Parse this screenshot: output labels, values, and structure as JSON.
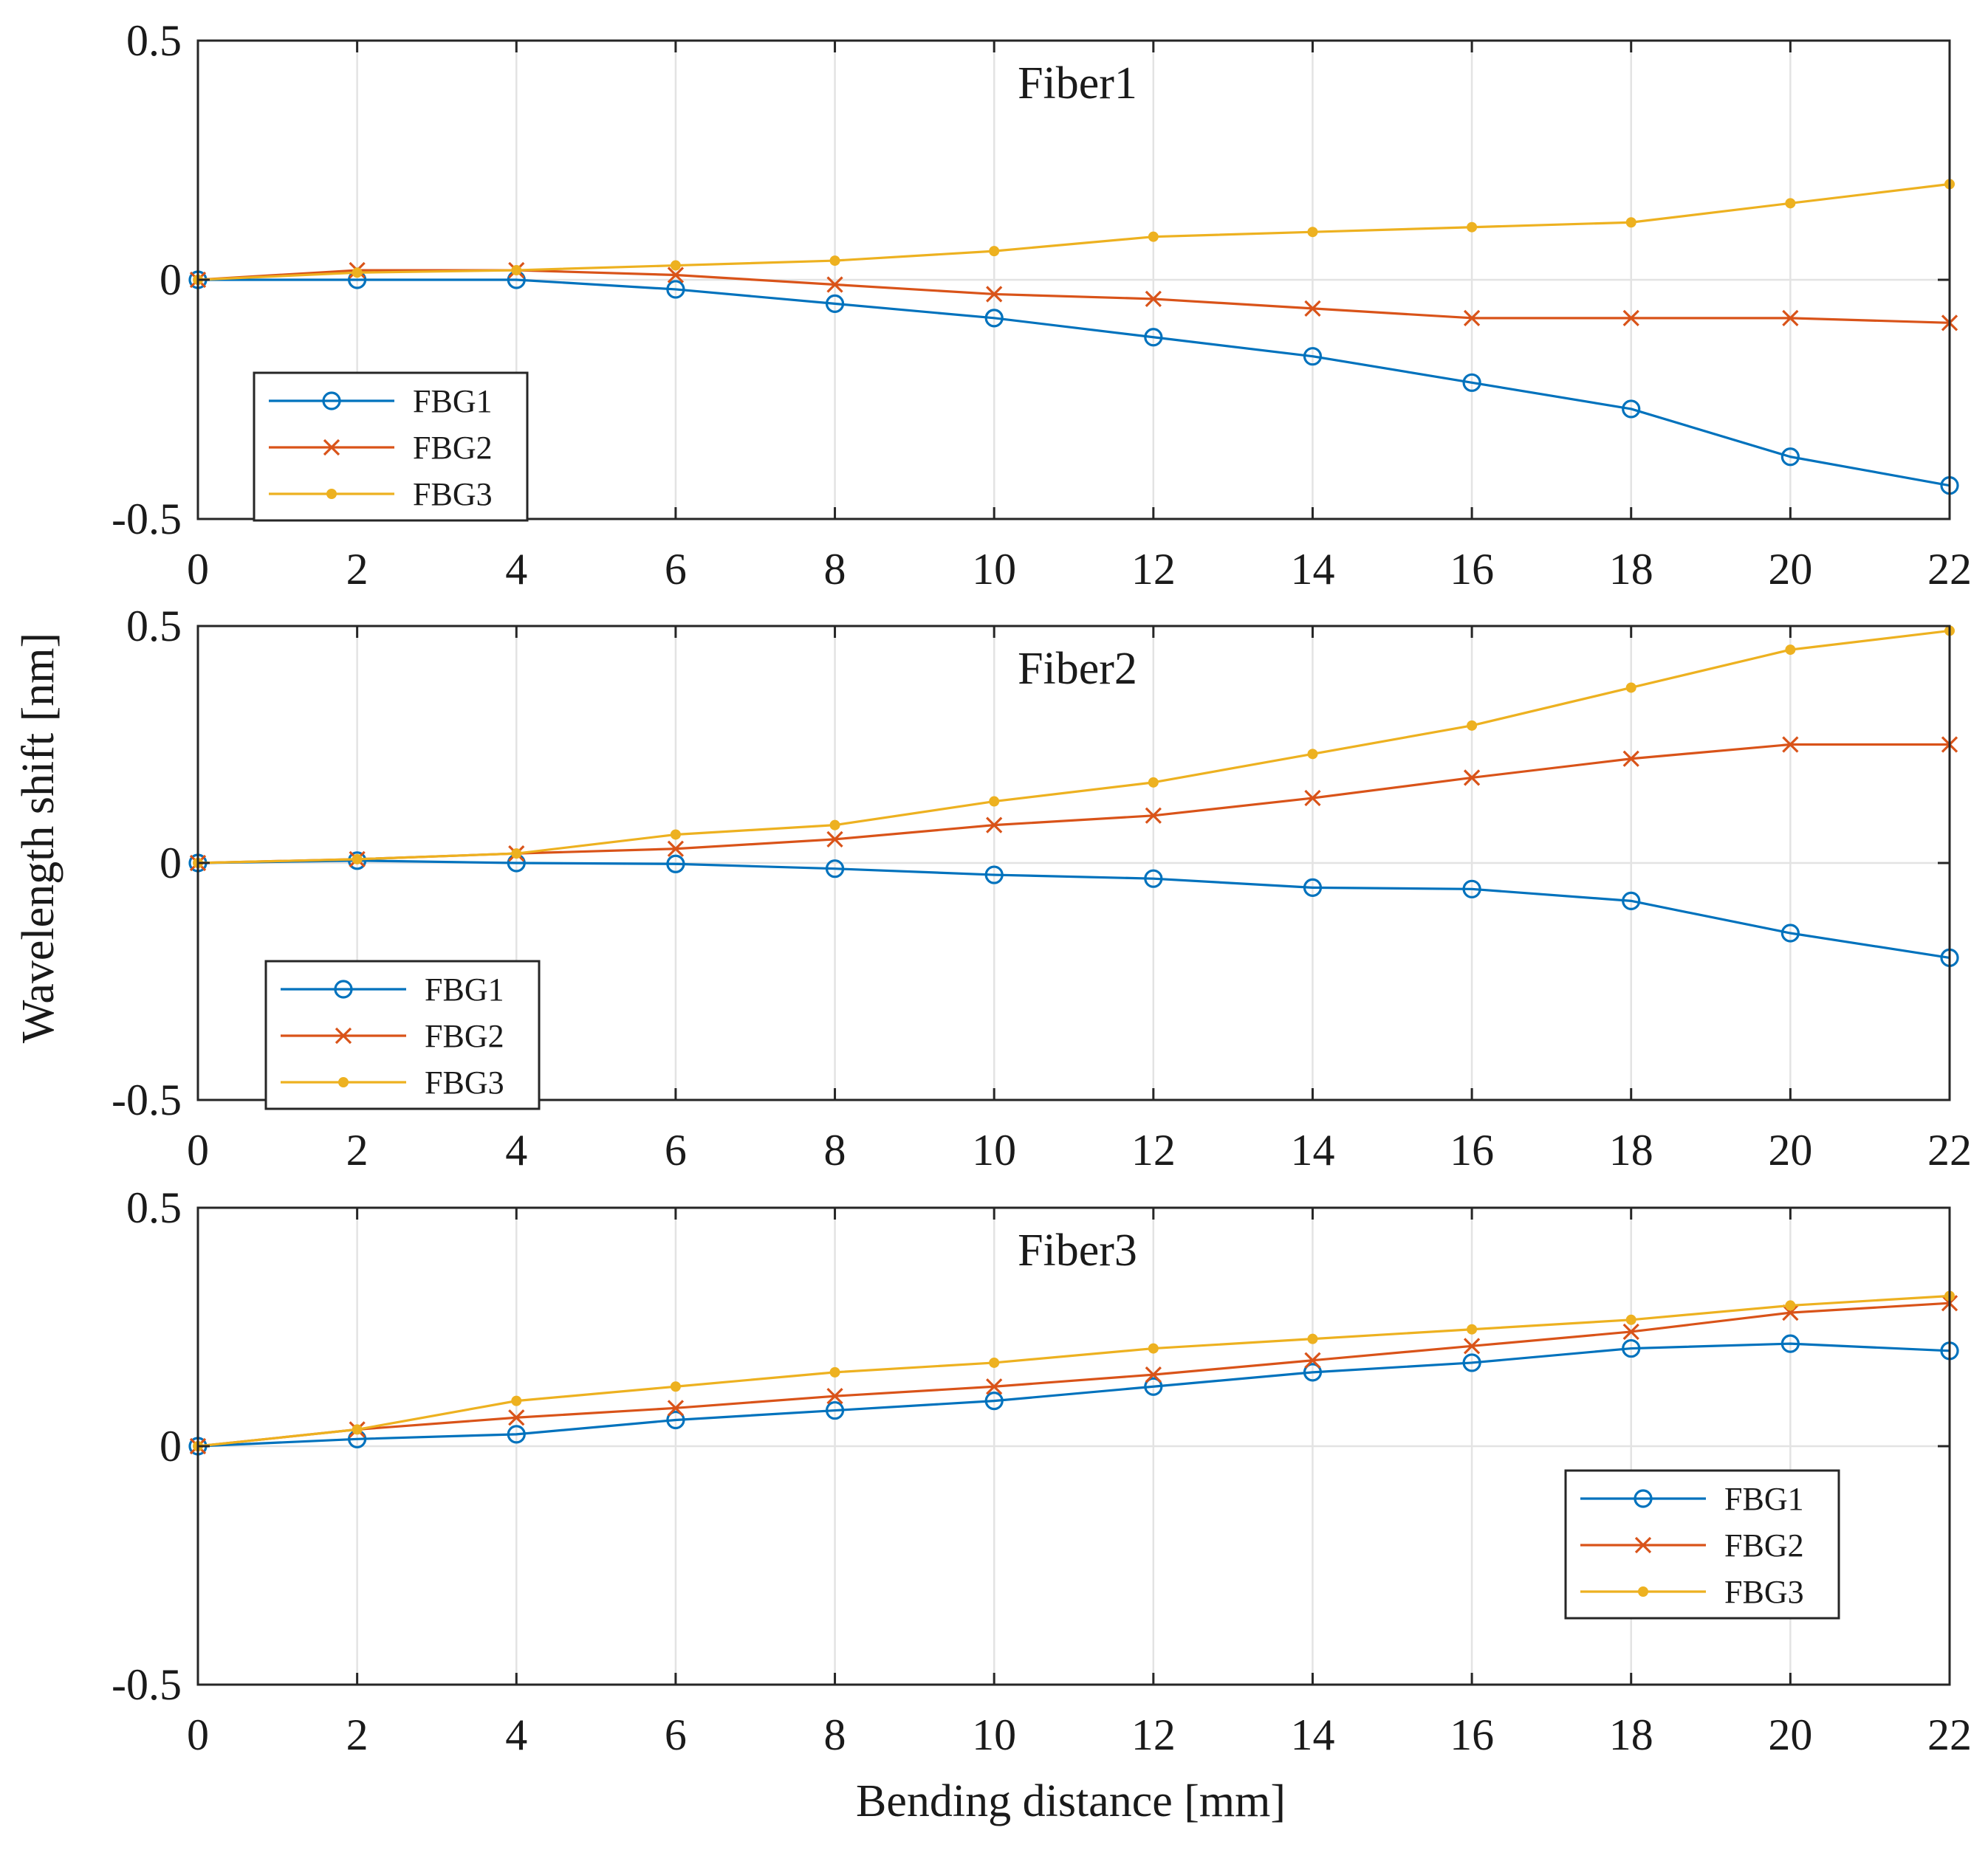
{
  "chart_data": {
    "type": "line",
    "xlabel": "Bending distance [mm]",
    "ylabel": "Wavelength shift [nm]",
    "x": [
      0,
      2,
      4,
      6,
      8,
      10,
      12,
      14,
      16,
      18,
      20,
      22
    ],
    "xlim": [
      0,
      22
    ],
    "ylim": [
      -0.5,
      0.5
    ],
    "xticks": [
      0,
      2,
      4,
      6,
      8,
      10,
      12,
      14,
      16,
      18,
      20,
      22
    ],
    "yticks": [
      -0.5,
      0,
      0.5
    ],
    "ytick_labels": [
      "-0.5",
      "0",
      "0.5"
    ],
    "grid": true,
    "colors": {
      "FBG1": "#0072BD",
      "FBG2": "#D95319",
      "FBG3": "#EDB120",
      "grid": "#e3e3e3",
      "axes": "#262626"
    },
    "panels": [
      {
        "title": "Fiber1",
        "legend_position": "lower-left",
        "series": [
          {
            "name": "FBG1",
            "marker": "circle",
            "values": [
              0,
              0,
              0,
              -0.02,
              -0.05,
              -0.08,
              -0.12,
              -0.16,
              -0.215,
              -0.27,
              -0.37,
              -0.43
            ]
          },
          {
            "name": "FBG2",
            "marker": "x",
            "values": [
              0,
              0.02,
              0.02,
              0.01,
              -0.01,
              -0.03,
              -0.04,
              -0.06,
              -0.08,
              -0.08,
              -0.08,
              -0.09
            ]
          },
          {
            "name": "FBG3",
            "marker": "dot",
            "values": [
              0,
              0.015,
              0.02,
              0.03,
              0.04,
              0.06,
              0.09,
              0.1,
              0.11,
              0.12,
              0.16,
              0.2
            ]
          }
        ]
      },
      {
        "title": "Fiber2",
        "legend_position": "lower-left",
        "series": [
          {
            "name": "FBG1",
            "marker": "circle",
            "values": [
              0,
              0.005,
              0,
              -0.002,
              -0.012,
              -0.025,
              -0.033,
              -0.052,
              -0.055,
              -0.08,
              -0.148,
              -0.2
            ]
          },
          {
            "name": "FBG2",
            "marker": "x",
            "values": [
              0,
              0.008,
              0.02,
              0.03,
              0.05,
              0.08,
              0.1,
              0.137,
              0.18,
              0.22,
              0.25,
              0.25
            ]
          },
          {
            "name": "FBG3",
            "marker": "dot",
            "values": [
              0,
              0.008,
              0.02,
              0.06,
              0.08,
              0.13,
              0.17,
              0.23,
              0.29,
              0.37,
              0.45,
              0.49
            ]
          }
        ]
      },
      {
        "title": "Fiber3",
        "legend_position": "lower-right",
        "series": [
          {
            "name": "FBG1",
            "marker": "circle",
            "values": [
              0,
              0.015,
              0.025,
              0.055,
              0.075,
              0.095,
              0.125,
              0.155,
              0.175,
              0.205,
              0.215,
              0.2
            ]
          },
          {
            "name": "FBG2",
            "marker": "x",
            "values": [
              0,
              0.035,
              0.06,
              0.08,
              0.105,
              0.125,
              0.15,
              0.18,
              0.21,
              0.24,
              0.28,
              0.3
            ]
          },
          {
            "name": "FBG3",
            "marker": "dot",
            "values": [
              0,
              0.035,
              0.095,
              0.125,
              0.155,
              0.175,
              0.205,
              0.225,
              0.245,
              0.265,
              0.295,
              0.315
            ]
          }
        ]
      }
    ]
  }
}
